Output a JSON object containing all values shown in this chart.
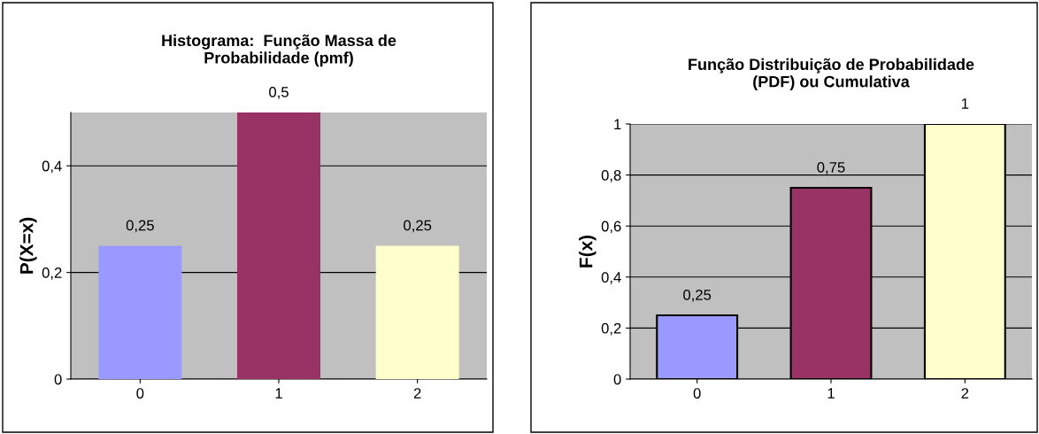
{
  "chart_data": [
    {
      "type": "bar",
      "title": "Histograma:  Função Massa de\nProbabilidade (pmf)",
      "ylabel": "P(X=x)",
      "categories": [
        "0",
        "1",
        "2"
      ],
      "values": [
        0.25,
        0.5,
        0.25
      ],
      "colors": [
        "#9999ff",
        "#993366",
        "#ffffcc"
      ],
      "value_labels": [
        "0,25",
        "0,5",
        "0,25"
      ],
      "ylim": [
        0,
        0.5
      ],
      "yticks": [
        0,
        {
          "value": 0.2,
          "label": "0,2"
        },
        {
          "value": 0.4,
          "label": "0,4"
        }
      ],
      "grid": "y",
      "legend": false
    },
    {
      "type": "bar",
      "title": "Função Distribuição de Probabilidade\n(PDF) ou Cumulativa",
      "ylabel": "F(x)",
      "categories": [
        "0",
        "1",
        "2"
      ],
      "values": [
        0.25,
        0.75,
        1
      ],
      "colors": [
        "#9999ff",
        "#993366",
        "#ffffcc"
      ],
      "value_labels": [
        "0,25",
        "0,75",
        "1"
      ],
      "ylim": [
        0,
        1
      ],
      "yticks": [
        0,
        {
          "value": 0.2,
          "label": "0,2"
        },
        {
          "value": 0.4,
          "label": "0,4"
        },
        {
          "value": 0.6,
          "label": "0,6"
        },
        {
          "value": 0.8,
          "label": "0,8"
        },
        1
      ],
      "grid": "y",
      "legend": false
    }
  ]
}
